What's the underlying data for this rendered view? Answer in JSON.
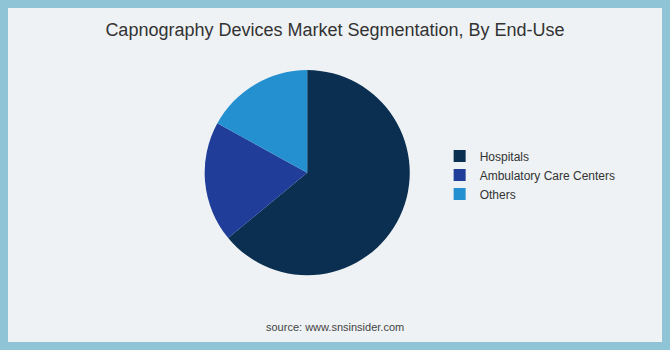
{
  "chart_data": {
    "type": "pie",
    "title": "Capnography Devices Market Segmentation, By End-Use",
    "categories": [
      "Hospitals",
      "Ambulatory Care Centers",
      "Others"
    ],
    "values": [
      64,
      19,
      17
    ],
    "colors": [
      "#0b2f50",
      "#1f3d99",
      "#2590d0"
    ],
    "legend": "right",
    "source": "source: www.snsinsider.com"
  }
}
